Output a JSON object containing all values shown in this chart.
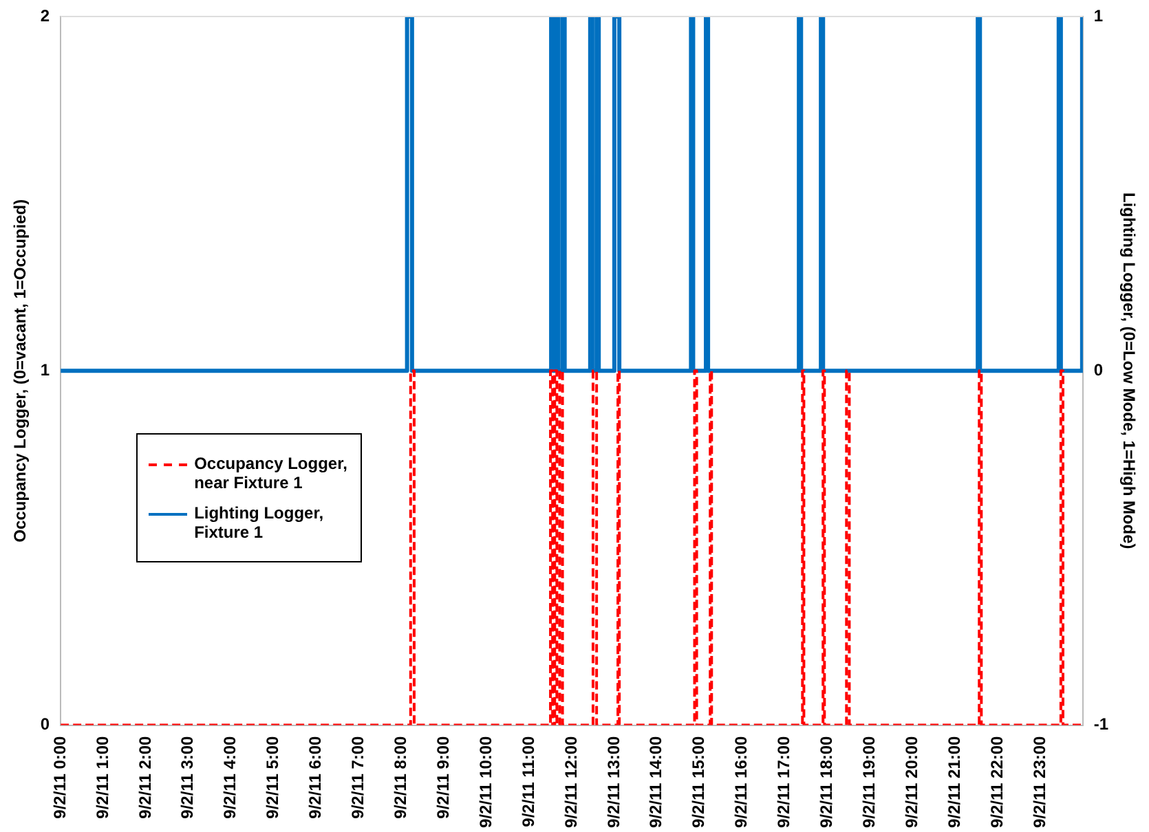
{
  "chart_data": {
    "type": "step",
    "ylabel": "Occupancy Logger, (0=vacant, 1=Occupied)",
    "y2label": "Lighting Logger, (0=Low Mode, 1=High Mode)",
    "xlim": [
      "--09-02T00:00",
      "--09-03T00:00"
    ],
    "xticks": [
      {
        "value": "--09-02T00:00",
        "label": "9/2/11 0:00"
      },
      {
        "value": "--09-02T01:00",
        "label": "9/2/11 1:00"
      },
      {
        "value": "--09-02T02:00",
        "label": "9/2/11 2:00"
      },
      {
        "value": "--09-02T03:00",
        "label": "9/2/11 3:00"
      },
      {
        "value": "--09-02T04:00",
        "label": "9/2/11 4:00"
      },
      {
        "value": "--09-02T05:00",
        "label": "9/2/11 5:00"
      },
      {
        "value": "--09-02T06:00",
        "label": "9/2/11 6:00"
      },
      {
        "value": "--09-02T07:00",
        "label": "9/2/11 7:00"
      },
      {
        "value": "--09-02T08:00",
        "label": "9/2/11 8:00"
      },
      {
        "value": "--09-02T09:00",
        "label": "9/2/11 9:00"
      },
      {
        "value": "--09-02T10:00",
        "label": "9/2/11 10:00"
      },
      {
        "value": "--09-02T11:00",
        "label": "9/2/11 11:00"
      },
      {
        "value": "--09-02T12:00",
        "label": "9/2/11 12:00"
      },
      {
        "value": "--09-02T13:00",
        "label": "9/2/11 13:00"
      },
      {
        "value": "--09-02T14:00",
        "label": "9/2/11 14:00"
      },
      {
        "value": "--09-02T15:00",
        "label": "9/2/11 15:00"
      },
      {
        "value": "--09-02T16:00",
        "label": "9/2/11 16:00"
      },
      {
        "value": "--09-02T17:00",
        "label": "9/2/11 17:00"
      },
      {
        "value": "--09-02T18:00",
        "label": "9/2/11 18:00"
      },
      {
        "value": "--09-02T19:00",
        "label": "9/2/11 19:00"
      },
      {
        "value": "--09-02T20:00",
        "label": "9/2/11 20:00"
      },
      {
        "value": "--09-02T21:00",
        "label": "9/2/11 21:00"
      },
      {
        "value": "--09-02T22:00",
        "label": "9/2/11 22:00"
      },
      {
        "value": "--09-02T23:00",
        "label": "9/2/11 23:00"
      }
    ],
    "ylim": [
      0,
      2
    ],
    "yticks": [
      0,
      1,
      2
    ],
    "y2lim": [
      -1,
      1
    ],
    "y2ticks": [
      -1,
      0,
      1
    ],
    "grid": false,
    "legend": "left",
    "marker": "none",
    "series": [
      {
        "name": "Occupancy Logger, near Fixture 1",
        "color": "#ff0000",
        "line_style": "dashed",
        "x": [
          "--09-02T00:00",
          "--09-02T08:13",
          "--09-02T08:18",
          "--09-02T11:30",
          "--09-02T11:33",
          "--09-02T11:36",
          "--09-02T11:39",
          "--09-02T11:43",
          "--09-02T11:47",
          "--09-02T12:30",
          "--09-02T12:35",
          "--09-02T13:05",
          "--09-02T13:07",
          "--09-02T14:53",
          "--09-02T14:56",
          "--09-02T15:15",
          "--09-02T15:17",
          "--09-02T17:25",
          "--09-02T17:27",
          "--09-02T17:54",
          "--09-02T17:56",
          "--09-02T18:27",
          "--09-02T18:31",
          "--09-02T21:34",
          "--09-02T21:37",
          "--09-02T23:29",
          "--09-02T23:32",
          "--09-03T00:00"
        ],
        "values": [
          0,
          1,
          0,
          1,
          0,
          1,
          0,
          1,
          0,
          1,
          0,
          1,
          0,
          1,
          0,
          1,
          0,
          1,
          0,
          1,
          0,
          1,
          0,
          1,
          0,
          1,
          0,
          0
        ]
      },
      {
        "name": "Lighting Logger, Fixture 1",
        "color": "#0070c0",
        "line_style": "solid",
        "axis": "y2",
        "x": [
          "--09-02T00:00",
          "--09-02T08:08",
          "--09-02T08:15",
          "--09-02T11:31",
          "--09-02T11:34",
          "--09-02T11:36",
          "--09-02T11:41",
          "--09-02T11:47",
          "--09-02T11:50",
          "--09-02T12:26",
          "--09-02T12:29",
          "--09-02T12:35",
          "--09-02T12:38",
          "--09-02T13:00",
          "--09-02T13:07",
          "--09-02T14:48",
          "--09-02T14:51",
          "--09-02T15:09",
          "--09-02T15:12",
          "--09-02T17:20",
          "--09-02T17:23",
          "--09-02T17:51",
          "--09-02T17:54",
          "--09-02T21:32",
          "--09-02T21:35",
          "--09-02T23:26",
          "--09-02T23:29",
          "--09-02T23:59",
          "--09-03T00:00"
        ],
        "values": [
          0,
          1,
          0,
          1,
          0,
          1,
          0,
          1,
          0,
          1,
          0,
          1,
          0,
          1,
          0,
          1,
          0,
          1,
          0,
          1,
          0,
          1,
          0,
          1,
          0,
          1,
          0,
          1,
          1
        ]
      }
    ]
  }
}
